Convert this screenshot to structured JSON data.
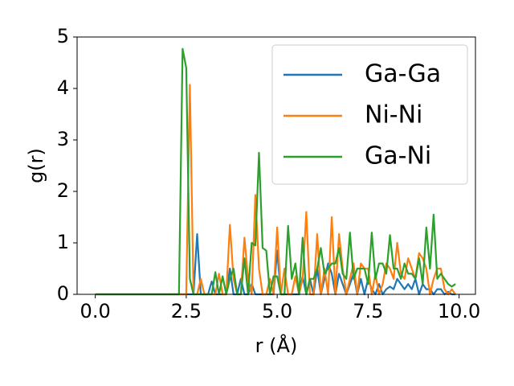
{
  "chart_data": {
    "type": "line",
    "x_label": "r (Å)",
    "y_label": "g(r)",
    "x": [
      0.0,
      0.1,
      0.2,
      0.3,
      0.4,
      0.5,
      0.6,
      0.7,
      0.8,
      0.9,
      1.0,
      1.1,
      1.2,
      1.3,
      1.4,
      1.5,
      1.6,
      1.7,
      1.8,
      1.9,
      2.0,
      2.1,
      2.2,
      2.3,
      2.4,
      2.5,
      2.6,
      2.7,
      2.8,
      2.9,
      3.0,
      3.1,
      3.2,
      3.3,
      3.4,
      3.5,
      3.6,
      3.7,
      3.8,
      3.9,
      4.0,
      4.1,
      4.2,
      4.3,
      4.4,
      4.5,
      4.6,
      4.7,
      4.8,
      4.9,
      5.0,
      5.1,
      5.2,
      5.3,
      5.4,
      5.5,
      5.6,
      5.7,
      5.8,
      5.9,
      6.0,
      6.1,
      6.2,
      6.3,
      6.4,
      6.5,
      6.6,
      6.7,
      6.8,
      6.9,
      7.0,
      7.1,
      7.2,
      7.3,
      7.4,
      7.5,
      7.6,
      7.7,
      7.8,
      7.9,
      8.0,
      8.1,
      8.2,
      8.3,
      8.4,
      8.5,
      8.6,
      8.7,
      8.8,
      8.9,
      9.0,
      9.1,
      9.2,
      9.3,
      9.4,
      9.5,
      9.6,
      9.7,
      9.8,
      9.9
    ],
    "series": [
      {
        "name": "Ga-Ga",
        "color": "#1f77b4",
        "values": [
          0,
          0,
          0,
          0,
          0,
          0,
          0,
          0,
          0,
          0,
          0,
          0,
          0,
          0,
          0,
          0,
          0,
          0,
          0,
          0,
          0,
          0,
          0,
          0,
          0,
          0,
          0,
          0,
          1.17,
          0,
          0,
          0,
          0.25,
          0,
          0,
          0,
          0,
          0.5,
          0,
          0,
          0.3,
          0,
          0,
          0.2,
          0,
          0,
          0,
          0,
          0,
          0,
          0.85,
          0,
          0,
          0,
          0,
          0,
          0,
          0.35,
          0,
          0.3,
          0,
          0.5,
          0,
          0.3,
          0.6,
          0.4,
          0,
          0.4,
          0.2,
          0,
          0.2,
          0.4,
          0,
          0.3,
          0,
          0.3,
          0.1,
          0,
          0.2,
          0,
          0.1,
          0.15,
          0.1,
          0.3,
          0.2,
          0.1,
          0.2,
          0.1,
          0.3,
          0,
          0.2,
          0.1,
          0.1,
          0,
          0.1,
          0.1,
          0,
          0.05,
          0,
          0
        ]
      },
      {
        "name": "Ni-Ni",
        "color": "#ff7f0e",
        "values": [
          0,
          0,
          0,
          0,
          0,
          0,
          0,
          0,
          0,
          0,
          0,
          0,
          0,
          0,
          0,
          0,
          0,
          0,
          0,
          0,
          0,
          0,
          0,
          0,
          0,
          0,
          4.07,
          0,
          0,
          0.3,
          0,
          0,
          0,
          0,
          0.4,
          0,
          0,
          1.35,
          0.3,
          0,
          0,
          1.1,
          0.3,
          0,
          1.93,
          0.5,
          0,
          0,
          0.3,
          0,
          1.3,
          0,
          0.5,
          0,
          0,
          0.35,
          0,
          0.3,
          1.6,
          0,
          0,
          1.17,
          0,
          0.5,
          0,
          1.5,
          0,
          1.17,
          0.5,
          0,
          0.3,
          0.6,
          0,
          0.6,
          0.5,
          0.5,
          0,
          0.4,
          0,
          0.2,
          0.6,
          0.5,
          0.3,
          1.0,
          0.4,
          0.3,
          0.7,
          0.5,
          0.3,
          0.8,
          0.7,
          0.5,
          0,
          0.3,
          0.5,
          0.5,
          0.1,
          0,
          0.1,
          0
        ]
      },
      {
        "name": "Ga-Ni",
        "color": "#2ca02c",
        "values": [
          0,
          0,
          0,
          0,
          0,
          0,
          0,
          0,
          0,
          0,
          0,
          0,
          0,
          0,
          0,
          0,
          0,
          0,
          0,
          0,
          0,
          0,
          0,
          0,
          4.77,
          4.4,
          0.3,
          0,
          0,
          0,
          0,
          0,
          0,
          0.43,
          0,
          0.35,
          0,
          0.3,
          0.5,
          0,
          0,
          0.7,
          0,
          1.0,
          0.95,
          2.75,
          0.9,
          0.85,
          0,
          0.35,
          0.35,
          0,
          0,
          1.33,
          0.3,
          0.6,
          0,
          1.1,
          0,
          0.3,
          0.3,
          0.5,
          0.9,
          0.4,
          0.5,
          0.6,
          0.6,
          0.9,
          0.4,
          0.3,
          1.2,
          0.3,
          0.5,
          0.5,
          0.5,
          0.2,
          1.2,
          0.3,
          0.6,
          0.6,
          0.4,
          1.15,
          0.5,
          0.5,
          0.3,
          0.6,
          0.4,
          0.4,
          0.3,
          0.7,
          0.2,
          1.3,
          0.5,
          1.55,
          0.3,
          0.4,
          0.3,
          0.2,
          0.15,
          0.2
        ]
      }
    ],
    "xlim": [
      -0.5,
      10.45
    ],
    "ylim": [
      0,
      5
    ],
    "xticks": [
      {
        "value": 0,
        "label": "0.0"
      },
      {
        "value": 2.5,
        "label": "2.5"
      },
      {
        "value": 5,
        "label": "5.0"
      },
      {
        "value": 7.5,
        "label": "7.5"
      },
      {
        "value": 10,
        "label": "10.0"
      }
    ],
    "yticks": [
      0,
      1,
      2,
      3,
      4,
      5
    ],
    "legend": "upper right",
    "grid": false
  }
}
